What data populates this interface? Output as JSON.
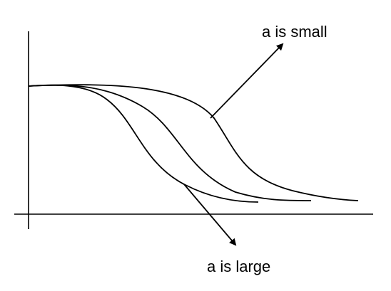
{
  "diagram": {
    "labels": {
      "small": "a is small",
      "large": "a is large"
    },
    "colors": {
      "stroke": "#000000",
      "background": "#ffffff"
    }
  }
}
